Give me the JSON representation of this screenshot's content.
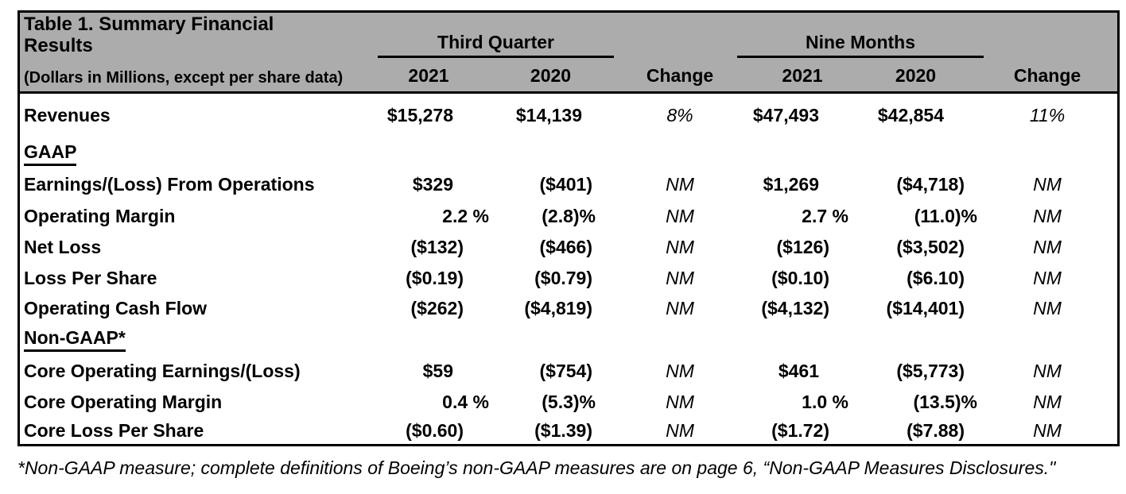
{
  "table": {
    "title_lines": [
      "Table 1.  Summary Financial",
      "Results"
    ],
    "subtitle": "(Dollars in Millions, except per share data)",
    "groups": [
      {
        "label": "Third Quarter"
      },
      {
        "label": "Nine Months"
      }
    ],
    "col_headers": {
      "q3_2021": "2021",
      "q3_2020": "2020",
      "q3_change": "Change",
      "nm_2021": "2021",
      "nm_2020": "2020",
      "nm_change": "Change"
    },
    "rows": [
      {
        "label": "Revenues",
        "q3_2021": "$15,278",
        "q3_2020": "$14,139",
        "q3_change": "8%",
        "nm_2021": "$47,493",
        "nm_2020": "$42,854",
        "nm_change": "11%"
      },
      {
        "label": "GAAP",
        "section": true
      },
      {
        "label": "Earnings/(Loss) From Operations",
        "q3_2021": "$329",
        "q3_2020": "($401)",
        "q3_change": "NM",
        "nm_2021": "$1,269",
        "nm_2020": "($4,718)",
        "nm_change": "NM"
      },
      {
        "label": "Operating Margin",
        "q3_2021": "2.2 %",
        "q3_2020": "(2.8)%",
        "q3_change": "NM",
        "nm_2021": "2.7 %",
        "nm_2020": "(11.0)%",
        "nm_change": "NM"
      },
      {
        "label": "Net Loss",
        "q3_2021": "($132)",
        "q3_2020": "($466)",
        "q3_change": "NM",
        "nm_2021": "($126)",
        "nm_2020": "($3,502)",
        "nm_change": "NM"
      },
      {
        "label": "Loss Per Share",
        "q3_2021": "($0.19)",
        "q3_2020": "($0.79)",
        "q3_change": "NM",
        "nm_2021": "($0.10)",
        "nm_2020": "($6.10)",
        "nm_change": "NM"
      },
      {
        "label": "Operating Cash Flow",
        "q3_2021": "($262)",
        "q3_2020": "($4,819)",
        "q3_change": "NM",
        "nm_2021": "($4,132)",
        "nm_2020": "($14,401)",
        "nm_change": "NM"
      },
      {
        "label": "Non-GAAP*",
        "section": true
      },
      {
        "label": "Core Operating Earnings/(Loss)",
        "q3_2021": "$59",
        "q3_2020": "($754)",
        "q3_change": "NM",
        "nm_2021": "$461",
        "nm_2020": "($5,773)",
        "nm_change": "NM"
      },
      {
        "label": "Core Operating Margin",
        "q3_2021": "0.4 %",
        "q3_2020": "(5.3)%",
        "q3_change": "NM",
        "nm_2021": "1.0 %",
        "nm_2020": "(13.5)%",
        "nm_change": "NM"
      },
      {
        "label": "Core Loss Per Share",
        "q3_2021": "($0.60)",
        "q3_2020": "($1.39)",
        "q3_change": "NM",
        "nm_2021": "($1.72)",
        "nm_2020": "($7.88)",
        "nm_change": "NM"
      }
    ],
    "footnote": "*Non-GAAP measure; complete definitions of Boeing’s non-GAAP measures are on page 6, “Non-GAAP Measures Disclosures.\""
  },
  "colors": {
    "header_bg": "#ACACAC",
    "border": "#000000",
    "text": "#000000",
    "page_bg": "#FFFFFF"
  }
}
